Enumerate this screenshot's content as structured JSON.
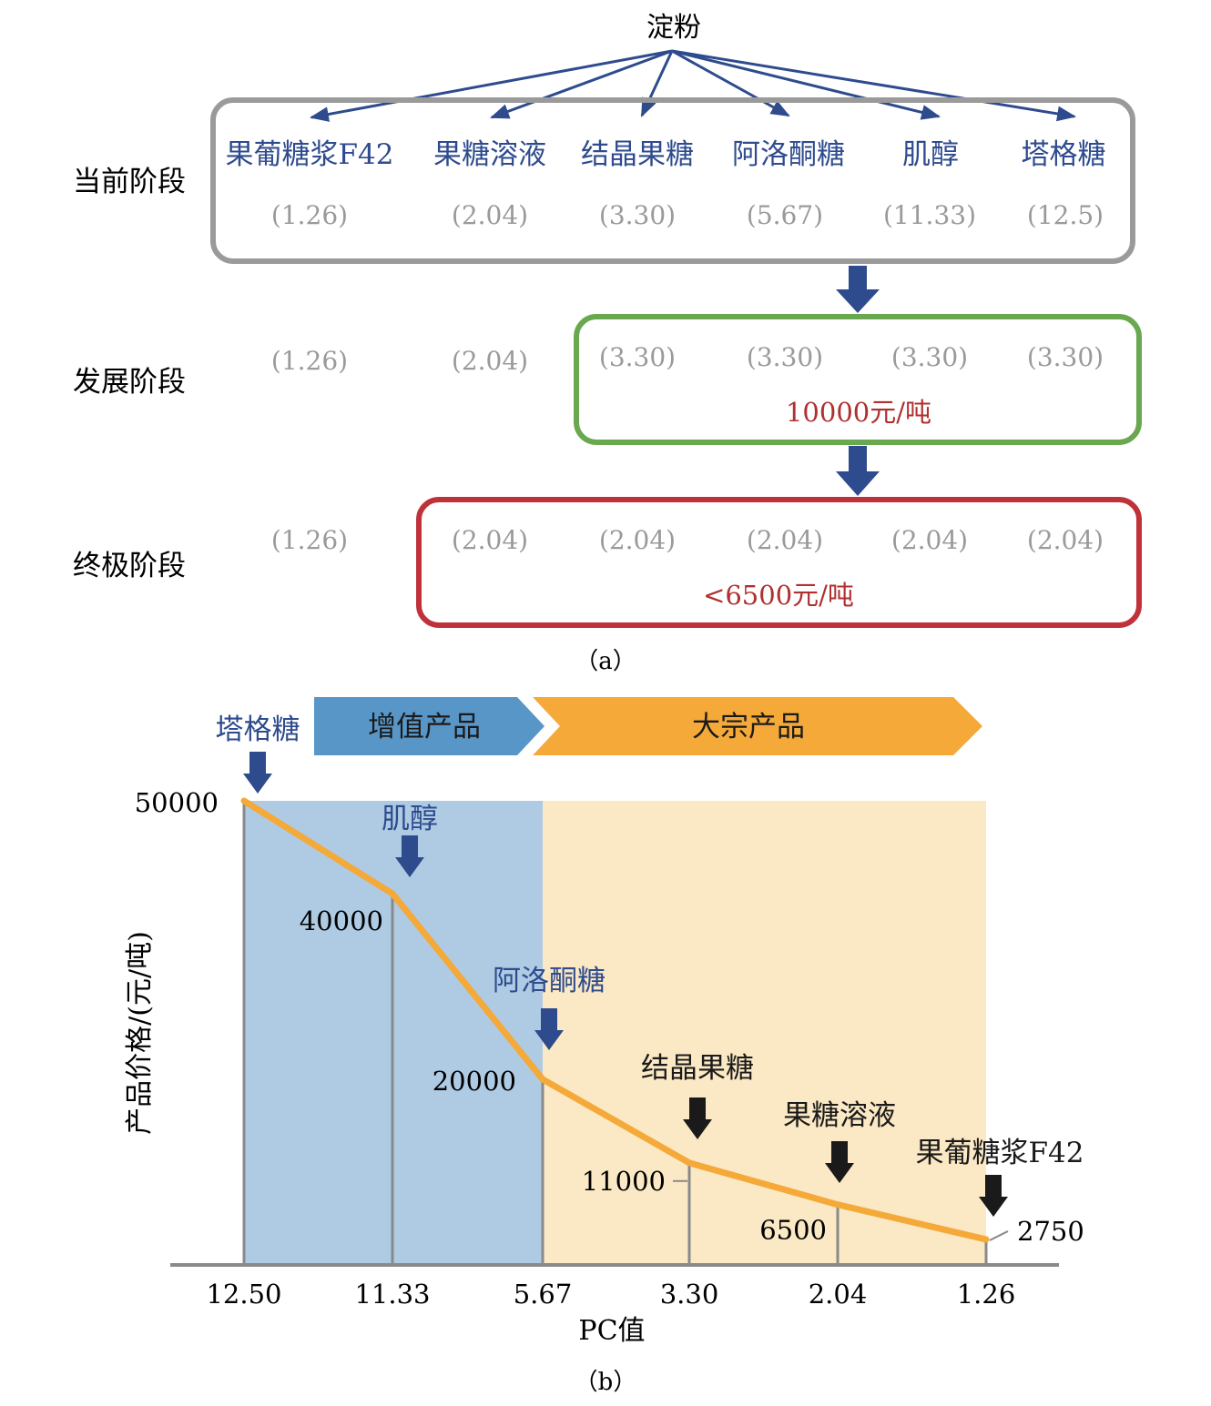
{
  "part_a": {
    "source": "淀粉",
    "products": [
      "果葡糖浆F42",
      "果糖溶液",
      "结晶果糖",
      "阿洛酮糖",
      "肌醇",
      "塔格糖"
    ],
    "stages": [
      {
        "label": "当前阶段",
        "pc_values": [
          "(1.26)",
          "(2.04)",
          "(3.30)",
          "(5.67)",
          "(11.33)",
          "(12.5)"
        ],
        "box_text": ""
      },
      {
        "label": "发展阶段",
        "pc_values": [
          "(1.26)",
          "(2.04)",
          "(3.30)",
          "(3.30)",
          "(3.30)",
          "(3.30)"
        ],
        "box_text": "10000元/吨"
      },
      {
        "label": "终极阶段",
        "pc_values": [
          "(1.26)",
          "(2.04)",
          "(2.04)",
          "(2.04)",
          "(2.04)",
          "(2.04)"
        ],
        "box_text": "<6500元/吨"
      }
    ],
    "caption": "（a）"
  },
  "part_b": {
    "band_labels": {
      "value_added": "增值产品",
      "bulk": "大宗产品"
    },
    "caption": "（b）",
    "colors": {
      "value_region": "#aecbe3",
      "bulk_region": "#fbe8c4",
      "value_banner": "#5896c8",
      "bulk_banner": "#f4a939",
      "curve": "#f4a939",
      "blue_text": "#2e4b8e",
      "gray_line": "#8a8a8a"
    },
    "chart_data": {
      "type": "line",
      "xlabel": "PC值",
      "ylabel": "产品价格/(元/吨)",
      "x_ticks": [
        "12.50",
        "11.33",
        "5.67",
        "3.30",
        "2.04",
        "1.26"
      ],
      "points": [
        {
          "x": "12.50",
          "y": 50000,
          "y_label": "50000",
          "product": "塔格糖",
          "arrow": "blue"
        },
        {
          "x": "11.33",
          "y": 40000,
          "y_label": "40000",
          "product": "肌醇",
          "arrow": "blue"
        },
        {
          "x": "5.67",
          "y": 20000,
          "y_label": "20000",
          "product": "阿洛酮糖",
          "arrow": "blue"
        },
        {
          "x": "3.30",
          "y": 11000,
          "y_label": "11000",
          "product": "结晶果糖",
          "arrow": "black"
        },
        {
          "x": "2.04",
          "y": 6500,
          "y_label": "6500",
          "product": "果糖溶液",
          "arrow": "black"
        },
        {
          "x": "1.26",
          "y": 2750,
          "y_label": "2750",
          "product": "果葡糖浆F42",
          "arrow": "black"
        }
      ],
      "ylim": [
        0,
        50000
      ]
    }
  }
}
